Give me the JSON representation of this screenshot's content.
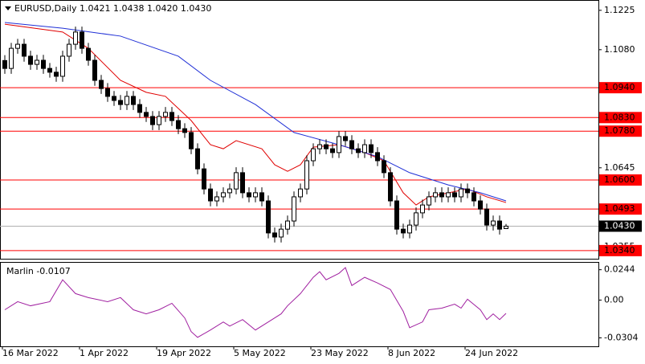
{
  "chart_data": [
    {
      "type": "candlestick",
      "title": "EURUSD,Daily 1.0421 1.0438 1.0420 1.0430",
      "categories": [
        "16 Mar 2022",
        null,
        null,
        null,
        null,
        null,
        null,
        null,
        null,
        null,
        null,
        null,
        "1 Apr 2022",
        null,
        null,
        null,
        null,
        null,
        null,
        null,
        null,
        null,
        null,
        null,
        "19 Apr 2022",
        null,
        null,
        null,
        null,
        null,
        null,
        null,
        null,
        null,
        null,
        null,
        "5 May 2022",
        null,
        null,
        null,
        null,
        null,
        null,
        null,
        null,
        null,
        null,
        null,
        "23 May 2022",
        null,
        null,
        null,
        null,
        null,
        null,
        null,
        null,
        null,
        null,
        null,
        "8 Jun 2022",
        null,
        null,
        null,
        null,
        null,
        null,
        null,
        null,
        null,
        null,
        null,
        "24 Jun 2022",
        null,
        null,
        null,
        null,
        null,
        null
      ],
      "open": [
        1.104,
        1.1011,
        1.1085,
        1.11,
        1.1056,
        1.1026,
        1.1041,
        1.1011,
        1.0997,
        1.0982,
        1.1056,
        1.11,
        1.1145,
        1.1085,
        1.1041,
        1.0967,
        1.0937,
        1.0908,
        1.0893,
        1.0878,
        1.0908,
        1.0878,
        1.0849,
        1.0834,
        1.0804,
        1.0834,
        1.0849,
        1.0819,
        1.0789,
        1.0775,
        1.0715,
        1.0641,
        1.0567,
        1.0523,
        1.0538,
        1.0553,
        1.0567,
        1.0627,
        1.0553,
        1.0538,
        1.0553,
        1.0523,
        1.0405,
        1.039,
        1.0419,
        1.0449,
        1.0538,
        1.0567,
        1.0671,
        1.0715,
        1.073,
        1.0715,
        1.0701,
        1.076,
        1.0745,
        1.0715,
        1.0701,
        1.073,
        1.0701,
        1.0671,
        1.0627,
        1.0523,
        1.0419,
        1.0405,
        1.0434,
        1.0479,
        1.0508,
        1.0538,
        1.0553,
        1.0538,
        1.0553,
        1.0538,
        1.0567,
        1.0553,
        1.0523,
        1.0493,
        1.0434,
        1.0449,
        1.0421
      ],
      "high": [
        1.106,
        1.1105,
        1.112,
        1.112,
        1.1076,
        1.1061,
        1.1061,
        1.1031,
        1.1017,
        1.1076,
        1.112,
        1.1165,
        1.1165,
        1.1105,
        1.1061,
        1.0987,
        1.0957,
        1.0928,
        1.0913,
        1.0928,
        1.0928,
        1.0898,
        1.0869,
        1.0854,
        1.0854,
        1.0869,
        1.0869,
        1.0839,
        1.0809,
        1.0795,
        1.0735,
        1.0661,
        1.0587,
        1.0558,
        1.0573,
        1.0587,
        1.0647,
        1.0647,
        1.0573,
        1.0573,
        1.0573,
        1.0543,
        1.0425,
        1.0439,
        1.0469,
        1.0558,
        1.0587,
        1.0691,
        1.0735,
        1.075,
        1.075,
        1.0735,
        1.078,
        1.078,
        1.0765,
        1.0735,
        1.075,
        1.075,
        1.0721,
        1.0691,
        1.0647,
        1.0543,
        1.0439,
        1.0454,
        1.0499,
        1.0528,
        1.0558,
        1.0573,
        1.0573,
        1.0573,
        1.0573,
        1.0587,
        1.0587,
        1.0573,
        1.0543,
        1.0513,
        1.0469,
        1.0469,
        1.0438
      ],
      "low": [
        1.0991,
        1.0991,
        1.1065,
        1.1036,
        1.1006,
        1.1006,
        1.0991,
        1.0977,
        1.0962,
        1.0962,
        1.1036,
        1.108,
        1.1065,
        1.1021,
        1.0947,
        1.0917,
        1.0888,
        1.0873,
        1.0858,
        1.0858,
        1.0858,
        1.0829,
        1.0814,
        1.0784,
        1.0784,
        1.0814,
        1.0799,
        1.0769,
        1.0755,
        1.0695,
        1.0621,
        1.0547,
        1.0503,
        1.0503,
        1.0518,
        1.0533,
        1.0547,
        1.0533,
        1.0518,
        1.0518,
        1.0503,
        1.0385,
        1.037,
        1.037,
        1.0399,
        1.0429,
        1.0518,
        1.0547,
        1.0651,
        1.0695,
        1.0695,
        1.0681,
        1.0681,
        1.0725,
        1.0695,
        1.0681,
        1.0681,
        1.0681,
        1.0651,
        1.0607,
        1.0503,
        1.0399,
        1.0385,
        1.0385,
        1.0414,
        1.0459,
        1.0488,
        1.0518,
        1.0518,
        1.0518,
        1.0518,
        1.0518,
        1.0533,
        1.0503,
        1.0473,
        1.0414,
        1.0414,
        1.0399,
        1.042
      ],
      "close": [
        1.1011,
        1.1085,
        1.11,
        1.1056,
        1.1026,
        1.1041,
        1.1011,
        1.0997,
        1.0982,
        1.1056,
        1.11,
        1.1145,
        1.1085,
        1.1041,
        1.0967,
        1.0937,
        1.0908,
        1.0893,
        1.0878,
        1.0908,
        1.0878,
        1.0849,
        1.0834,
        1.0804,
        1.0834,
        1.0849,
        1.0819,
        1.0789,
        1.0775,
        1.0715,
        1.0641,
        1.0567,
        1.0523,
        1.0538,
        1.0553,
        1.0567,
        1.0627,
        1.0553,
        1.0538,
        1.0553,
        1.0523,
        1.0405,
        1.039,
        1.0419,
        1.0449,
        1.0538,
        1.0567,
        1.0671,
        1.0715,
        1.073,
        1.0715,
        1.0701,
        1.076,
        1.0745,
        1.0715,
        1.0701,
        1.073,
        1.0701,
        1.0671,
        1.0627,
        1.0523,
        1.0419,
        1.0405,
        1.0434,
        1.0479,
        1.0508,
        1.0538,
        1.0553,
        1.0538,
        1.0553,
        1.0538,
        1.0567,
        1.0553,
        1.0523,
        1.0493,
        1.0434,
        1.0449,
        1.0419,
        1.043
      ],
      "moving_averages": [
        {
          "color": "#e00000",
          "x": [
            0,
            9,
            13,
            18,
            22,
            25,
            29,
            32,
            34,
            36,
            40,
            42,
            44,
            46,
            48,
            52,
            56,
            59,
            62,
            64,
            66,
            72,
            75,
            78
          ],
          "values": [
            1.1174,
            1.1145,
            1.1085,
            1.0967,
            1.0923,
            1.0908,
            1.0819,
            1.073,
            1.0715,
            1.0745,
            1.0715,
            1.0656,
            1.0632,
            1.0656,
            1.0721,
            1.073,
            1.0701,
            1.0671,
            1.0553,
            1.0508,
            1.0538,
            1.0567,
            1.0538,
            1.0517
          ]
        },
        {
          "color": "#1f2fd6",
          "x": [
            0,
            9,
            18,
            27,
            32,
            39,
            45,
            52,
            58,
            63,
            69,
            74,
            78
          ],
          "values": [
            1.118,
            1.1159,
            1.113,
            1.1056,
            1.0967,
            1.0878,
            1.0775,
            1.073,
            1.0686,
            1.0627,
            1.0582,
            1.0553,
            1.0523
          ]
        }
      ],
      "levels": [
        {
          "value": 1.094,
          "label": "1.0940"
        },
        {
          "value": 1.083,
          "label": "1.0830"
        },
        {
          "value": 1.078,
          "label": "1.0780"
        },
        {
          "value": 1.06,
          "label": "1.0600"
        },
        {
          "value": 1.0493,
          "label": "1.0493"
        },
        {
          "value": 1.034,
          "label": "1.0340"
        }
      ],
      "level_color": "#ff0000",
      "last_price": {
        "value": 1.043,
        "label": "1.0430"
      },
      "ylim": [
        1.031,
        1.1263
      ],
      "yticks": [
        1.1225,
        {
          "value": 1.108,
          "label": "1.1080"
        },
        1.0645,
        1.0355
      ]
    },
    {
      "type": "line",
      "title": "Marlin -0.0107",
      "color": "#a020a0",
      "x": [
        0,
        2,
        4,
        7,
        9,
        11,
        13,
        16,
        18,
        20,
        22,
        24,
        26,
        28,
        29,
        30,
        32,
        34,
        35,
        37,
        39,
        41,
        43,
        44,
        46,
        48,
        49,
        50,
        52,
        53,
        54,
        56,
        58,
        60,
        62,
        63,
        65,
        66,
        68,
        70,
        71,
        72,
        74,
        75,
        76,
        77,
        78
      ],
      "values": [
        -0.0078,
        -0.0013,
        -0.0046,
        -0.0013,
        0.0163,
        0.0052,
        0.002,
        -0.0013,
        0.002,
        -0.0078,
        -0.0111,
        -0.0078,
        -0.0026,
        -0.0144,
        -0.0254,
        -0.03,
        -0.0241,
        -0.0176,
        -0.0209,
        -0.0157,
        -0.0241,
        -0.0176,
        -0.0111,
        -0.0046,
        0.0052,
        0.0183,
        0.0228,
        0.0163,
        0.0215,
        0.0261,
        0.0117,
        0.0183,
        0.0137,
        0.0085,
        -0.0091,
        -0.0222,
        -0.0176,
        -0.0078,
        -0.0065,
        -0.0033,
        -0.0065,
        0.0007,
        -0.0078,
        -0.0157,
        -0.0111,
        -0.0157,
        -0.0107
      ],
      "ylim": [
        -0.0372,
        0.03
      ],
      "yticks": [
        0.0244,
        {
          "value": 0,
          "label": "0.00"
        },
        -0.0304
      ]
    }
  ]
}
